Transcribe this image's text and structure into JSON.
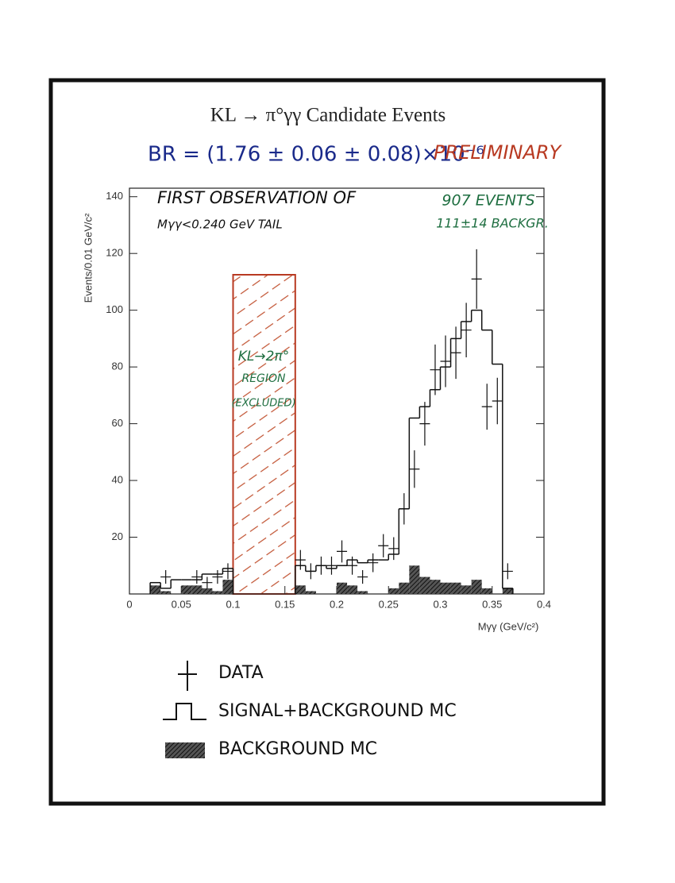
{
  "chart_data": {
    "type": "histogram",
    "title": "KL → π°γγ Candidate Events",
    "subtitle": "BR = (1.76 ± 0.06 ± 0.08)×10⁻⁶",
    "subtitle_note": "PRELIMINARY",
    "x_label": "Mγγ (GeV/c²)",
    "y_label": "Events/0.01 GeV/c²",
    "xlim": [
      0,
      0.4
    ],
    "ylim": [
      0,
      143
    ],
    "xticks": [
      0,
      0.05,
      0.1,
      0.15,
      0.2,
      0.25,
      0.3,
      0.35,
      0.4
    ],
    "yticks": [
      20,
      40,
      60,
      80,
      100,
      120,
      140
    ],
    "annotations": [
      {
        "text": "FIRST OBSERVATION OF",
        "color": "#111111"
      },
      {
        "text": "Mγγ<0.240 GeV TAIL",
        "color": "#111111"
      },
      {
        "text": "907 EVENTS",
        "color": "#1e6e40"
      },
      {
        "text": "111±14 BACKGR.",
        "color": "#1e6e40"
      },
      {
        "text": "KL→2π°",
        "color": "#1e6e40"
      },
      {
        "text": "REGION",
        "color": "#1e6e40"
      },
      {
        "text": "(EXCLUDED)",
        "color": "#1e6e40"
      }
    ],
    "excluded": {
      "range": [
        0.1,
        0.16
      ],
      "color": "#b83a22"
    },
    "bins": [
      0.02,
      0.03,
      0.04,
      0.05,
      0.06,
      0.07,
      0.08,
      0.09,
      0.1,
      0.11,
      0.12,
      0.13,
      0.14,
      0.15,
      0.16,
      0.17,
      0.18,
      0.19,
      0.2,
      0.21,
      0.22,
      0.23,
      0.24,
      0.25,
      0.26,
      0.27,
      0.28,
      0.29,
      0.3,
      0.31,
      0.32,
      0.33,
      0.34,
      0.35,
      0.36,
      0.37
    ],
    "series": [
      {
        "name": "SIGNAL+BACKGROUND MC",
        "color": "#111111",
        "values": [
          4,
          2,
          5,
          5,
          5,
          7,
          7,
          9,
          null,
          null,
          null,
          null,
          null,
          null,
          10,
          8,
          10,
          9,
          10,
          12,
          11,
          12,
          12,
          14,
          30,
          62,
          66,
          72,
          80,
          90,
          96,
          100,
          93,
          81,
          2
        ]
      },
      {
        "name": "BACKGROUND MC",
        "color": "#222222",
        "values": [
          3,
          1,
          0,
          3,
          3,
          2,
          1,
          5,
          null,
          null,
          null,
          null,
          null,
          null,
          3,
          1,
          0,
          0,
          4,
          3,
          1,
          0,
          0,
          2,
          4,
          10,
          6,
          5,
          4,
          4,
          3,
          5,
          2,
          0,
          2
        ]
      }
    ],
    "points": {
      "name": "DATA",
      "color": "#111111",
      "x": [
        0.035,
        0.065,
        0.075,
        0.085,
        0.095,
        0.165,
        0.175,
        0.185,
        0.195,
        0.205,
        0.215,
        0.225,
        0.235,
        0.245,
        0.255,
        0.265,
        0.275,
        0.285,
        0.295,
        0.305,
        0.315,
        0.325,
        0.335,
        0.345,
        0.355,
        0.365
      ],
      "values": [
        6,
        6,
        4,
        6,
        8,
        12,
        8,
        10,
        10,
        15,
        10,
        6,
        11,
        17,
        16,
        30,
        44,
        60,
        79,
        82,
        85,
        93,
        111,
        66,
        68,
        8
      ],
      "errors": [
        2.4,
        2.4,
        2,
        2.4,
        2.8,
        3.5,
        2.8,
        3.2,
        3.2,
        3.9,
        3.2,
        2.4,
        3.3,
        4.1,
        4,
        5.5,
        6.6,
        7.7,
        8.9,
        9.1,
        9.2,
        9.6,
        10.5,
        8.1,
        8.2,
        2.8
      ]
    }
  }
}
